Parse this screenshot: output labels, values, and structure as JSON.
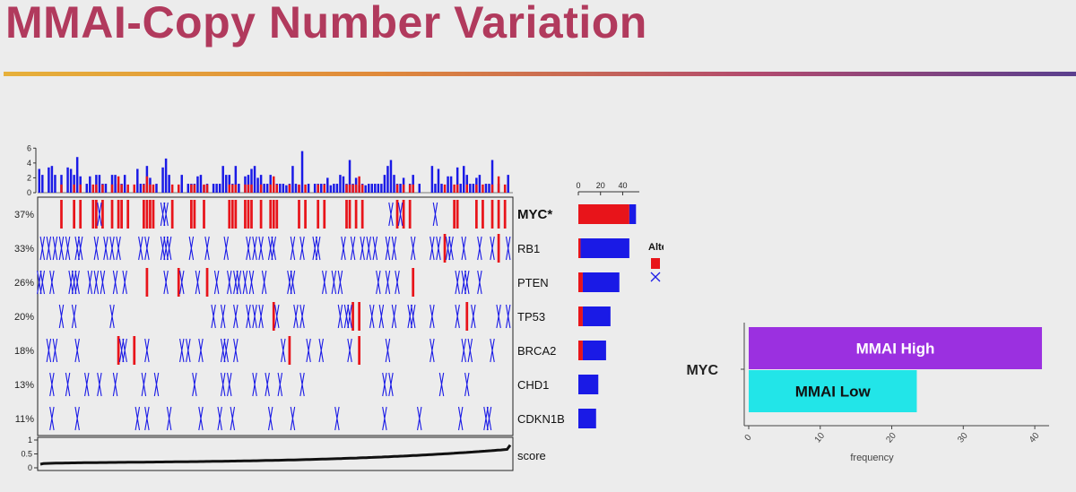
{
  "slide": {
    "title": "MMAI-Copy Number Variation"
  },
  "colors": {
    "gain": "#e8141a",
    "loss": "#1a1ae6",
    "title": "#b13a5d",
    "mmai_high": "#9b30e0",
    "mmai_low": "#22e5e8"
  },
  "chart_data": [
    {
      "type": "heatmap",
      "kind": "oncoprint",
      "genes": [
        {
          "name": "MYC*",
          "percent": "37%",
          "gain": 46,
          "loss": 6,
          "bold": true
        },
        {
          "name": "RB1",
          "percent": "33%",
          "gain": 2,
          "loss": 44
        },
        {
          "name": "PTEN",
          "percent": "26%",
          "gain": 4,
          "loss": 33
        },
        {
          "name": "TP53",
          "percent": "20%",
          "gain": 4,
          "loss": 25
        },
        {
          "name": "BRCA2",
          "percent": "18%",
          "gain": 4,
          "loss": 21
        },
        {
          "name": "CHD1",
          "percent": "13%",
          "gain": 0,
          "loss": 18
        },
        {
          "name": "CDKN1B",
          "percent": "11%",
          "gain": 0,
          "loss": 16
        }
      ],
      "top_axis": {
        "ticks": [
          0,
          2,
          4,
          6
        ],
        "range": [
          0,
          7
        ]
      },
      "side_axis": {
        "ticks": [
          0,
          20,
          40
        ],
        "range": [
          0,
          55
        ]
      },
      "score_axis": {
        "ticks": [
          0,
          0.5,
          1
        ],
        "label": "score"
      },
      "legend": {
        "title": "Alterations",
        "entries": [
          "Gain",
          "Loss"
        ]
      }
    },
    {
      "type": "bar",
      "orientation": "horizontal",
      "category": "MYC",
      "series": [
        {
          "name": "MMAI High",
          "value": 41
        },
        {
          "name": "MMAI Low",
          "value": 23.5
        }
      ],
      "xlabel": "frequency",
      "xticks": [
        0,
        10,
        20,
        30,
        40
      ],
      "xlim": [
        0,
        42
      ]
    }
  ]
}
